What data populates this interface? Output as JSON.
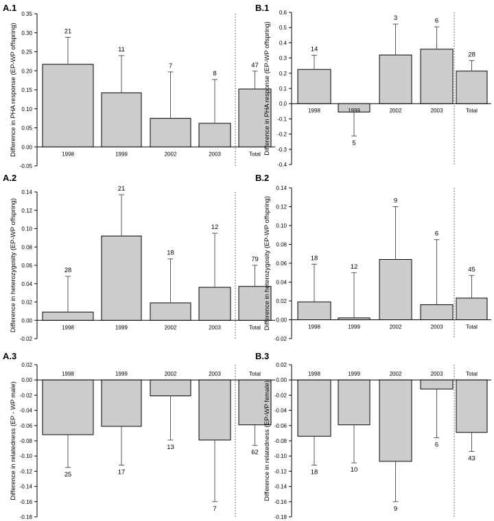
{
  "chart_data": [
    {
      "id": "A1",
      "panel_label": "A.1",
      "type": "bar",
      "ylabel": "Difference in PHA response (EP-WP offspring)",
      "ylim": [
        -0.05,
        0.35
      ],
      "yticks": [
        -0.05,
        0.0,
        0.05,
        0.1,
        0.15,
        0.2,
        0.25,
        0.3,
        0.35
      ],
      "tick_decimals": 2,
      "categories": [
        "1998",
        "1999",
        "2002",
        "2003",
        "Total"
      ],
      "values": [
        0.217,
        0.142,
        0.075,
        0.062,
        0.152
      ],
      "error_upper": [
        0.288,
        0.24,
        0.197,
        0.177,
        0.199
      ],
      "n": [
        "21",
        "11",
        "7",
        "8",
        "47"
      ],
      "category_labels_position": "below_axis",
      "n_position": "above",
      "separator_before_last": true
    },
    {
      "id": "B1",
      "panel_label": "B.1",
      "type": "bar",
      "ylabel": "Difference in PHA response (EP-WP offspring)",
      "ylim": [
        -0.4,
        0.6
      ],
      "yticks": [
        -0.4,
        -0.3,
        -0.2,
        -0.1,
        0.0,
        0.1,
        0.2,
        0.3,
        0.4,
        0.5,
        0.6
      ],
      "tick_decimals": 1,
      "categories": [
        "1998",
        "1999",
        "2002",
        "2003",
        "Total"
      ],
      "values": [
        0.225,
        -0.055,
        0.32,
        0.358,
        0.214
      ],
      "error_upper": [
        0.318,
        -0.212,
        0.523,
        0.505,
        0.283
      ],
      "n": [
        "14",
        "5",
        "3",
        "6",
        "28"
      ],
      "category_labels_position": "below_axis",
      "n_position": "outside",
      "separator_before_last": true
    },
    {
      "id": "A2",
      "panel_label": "A.2",
      "type": "bar",
      "ylabel": "Difference in heterozygosity (EP-WP offspring)",
      "ylim": [
        -0.02,
        0.14
      ],
      "yticks": [
        -0.02,
        0.0,
        0.02,
        0.04,
        0.06,
        0.08,
        0.1,
        0.12,
        0.14
      ],
      "tick_decimals": 2,
      "categories": [
        "1998",
        "1999",
        "2002",
        "2003",
        "Total"
      ],
      "values": [
        0.009,
        0.092,
        0.019,
        0.036,
        0.037
      ],
      "error_upper": [
        0.048,
        0.137,
        0.067,
        0.095,
        0.06
      ],
      "n": [
        "28",
        "21",
        "18",
        "12",
        "79"
      ],
      "category_labels_position": "below_axis",
      "n_position": "above",
      "separator_before_last": true
    },
    {
      "id": "B2",
      "panel_label": "B.2",
      "type": "bar",
      "ylabel": "Difference in heterozygosity (EP-WP offspring)",
      "ylim": [
        -0.02,
        0.14
      ],
      "yticks": [
        -0.02,
        0.0,
        0.02,
        0.04,
        0.06,
        0.08,
        0.1,
        0.12,
        0.14
      ],
      "tick_decimals": 2,
      "categories": [
        "1998",
        "1999",
        "2002",
        "2003",
        "Total"
      ],
      "values": [
        0.019,
        0.002,
        0.064,
        0.016,
        0.023
      ],
      "error_upper": [
        0.059,
        0.05,
        0.12,
        0.085,
        0.047
      ],
      "n": [
        "18",
        "12",
        "9",
        "6",
        "45"
      ],
      "category_labels_position": "below_axis",
      "n_position": "above",
      "separator_before_last": true
    },
    {
      "id": "A3",
      "panel_label": "A.3",
      "type": "bar",
      "ylabel": "Difference in relatedness (EP - WP male)",
      "ylim": [
        -0.18,
        0.02
      ],
      "yticks": [
        -0.18,
        -0.16,
        -0.14,
        -0.12,
        -0.1,
        -0.08,
        -0.06,
        -0.04,
        -0.02,
        0.0,
        0.02
      ],
      "tick_decimals": 2,
      "categories": [
        "1998",
        "1999",
        "2002",
        "2003",
        "Total"
      ],
      "values": [
        -0.072,
        -0.061,
        -0.021,
        -0.079,
        -0.059
      ],
      "error_upper": [
        -0.115,
        -0.112,
        -0.079,
        -0.16,
        -0.086
      ],
      "n": [
        "25",
        "17",
        "13",
        "7",
        "62"
      ],
      "category_labels_position": "above_axis",
      "n_position": "below",
      "separator_before_last": true
    },
    {
      "id": "B3",
      "panel_label": "B.3",
      "type": "bar",
      "ylabel": "Difference in relatedness (EP-WP female)",
      "ylim": [
        -0.18,
        0.02
      ],
      "yticks": [
        -0.18,
        -0.16,
        -0.14,
        -0.12,
        -0.1,
        -0.08,
        -0.06,
        -0.04,
        -0.02,
        0.0,
        0.02
      ],
      "tick_decimals": 2,
      "categories": [
        "1998",
        "1999",
        "2002",
        "2003",
        "Total"
      ],
      "values": [
        -0.074,
        -0.059,
        -0.107,
        -0.012,
        -0.069
      ],
      "error_upper": [
        -0.112,
        -0.109,
        -0.16,
        -0.076,
        -0.094
      ],
      "n": [
        "18",
        "10",
        "9",
        "6",
        "43"
      ],
      "category_labels_position": "above_axis",
      "n_position": "below",
      "separator_before_last": true
    }
  ],
  "colors": {
    "bar_fill": "#cccccc",
    "bar_stroke": "#000000",
    "error_bar": "#555555",
    "axis": "#000000",
    "separator": "#666666"
  }
}
